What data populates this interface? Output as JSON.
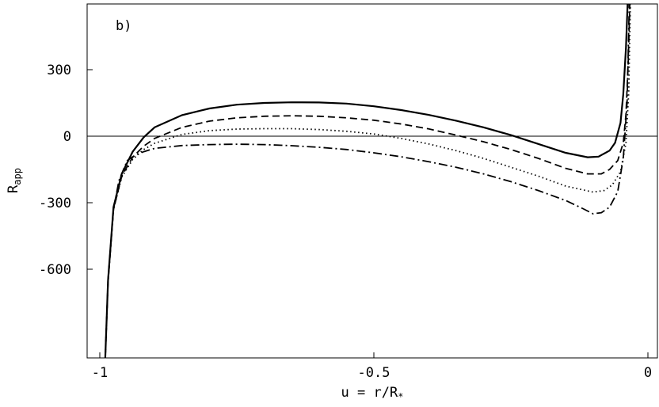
{
  "chart_data": {
    "type": "line",
    "panel_label": "b)",
    "xlabel": "u = r/R",
    "xlabel_sub": "*",
    "ylabel": "R",
    "ylabel_sub": "app",
    "xlim": [
      -1.0,
      0.0
    ],
    "ylim": [
      -1000,
      600
    ],
    "xticks": [
      -1,
      -0.5,
      0
    ],
    "xtick_labels": [
      "-1",
      "-0.5",
      "0"
    ],
    "yticks": [
      300,
      0,
      -300,
      -600
    ],
    "ytick_labels": [
      "300",
      "0",
      "-300",
      "-600"
    ],
    "reference_line_y": 0,
    "grid": false,
    "series": [
      {
        "style": "solid",
        "points": [
          [
            -0.99,
            -1000
          ],
          [
            -0.985,
            -650
          ],
          [
            -0.975,
            -320
          ],
          [
            -0.96,
            -170
          ],
          [
            -0.94,
            -70
          ],
          [
            -0.92,
            -5
          ],
          [
            -0.9,
            40
          ],
          [
            -0.85,
            95
          ],
          [
            -0.8,
            125
          ],
          [
            -0.75,
            142
          ],
          [
            -0.7,
            150
          ],
          [
            -0.65,
            153
          ],
          [
            -0.6,
            152
          ],
          [
            -0.55,
            147
          ],
          [
            -0.5,
            135
          ],
          [
            -0.45,
            118
          ],
          [
            -0.4,
            96
          ],
          [
            -0.35,
            70
          ],
          [
            -0.3,
            40
          ],
          [
            -0.25,
            5
          ],
          [
            -0.2,
            -35
          ],
          [
            -0.15,
            -75
          ],
          [
            -0.11,
            -95
          ],
          [
            -0.09,
            -92
          ],
          [
            -0.07,
            -65
          ],
          [
            -0.06,
            -30
          ],
          [
            -0.05,
            60
          ],
          [
            -0.045,
            190
          ],
          [
            -0.04,
            400
          ],
          [
            -0.037,
            600
          ]
        ]
      },
      {
        "style": "dashed",
        "points": [
          [
            -0.99,
            -1000
          ],
          [
            -0.985,
            -650
          ],
          [
            -0.975,
            -330
          ],
          [
            -0.96,
            -180
          ],
          [
            -0.94,
            -95
          ],
          [
            -0.92,
            -45
          ],
          [
            -0.9,
            -10
          ],
          [
            -0.85,
            40
          ],
          [
            -0.8,
            68
          ],
          [
            -0.75,
            83
          ],
          [
            -0.7,
            90
          ],
          [
            -0.65,
            92
          ],
          [
            -0.6,
            90
          ],
          [
            -0.55,
            83
          ],
          [
            -0.5,
            72
          ],
          [
            -0.45,
            55
          ],
          [
            -0.4,
            33
          ],
          [
            -0.35,
            5
          ],
          [
            -0.3,
            -25
          ],
          [
            -0.25,
            -60
          ],
          [
            -0.2,
            -100
          ],
          [
            -0.15,
            -145
          ],
          [
            -0.11,
            -170
          ],
          [
            -0.085,
            -170
          ],
          [
            -0.07,
            -150
          ],
          [
            -0.055,
            -110
          ],
          [
            -0.045,
            -30
          ],
          [
            -0.04,
            100
          ],
          [
            -0.036,
            330
          ],
          [
            -0.033,
            600
          ]
        ]
      },
      {
        "style": "dotted",
        "points": [
          [
            -0.99,
            -1000
          ],
          [
            -0.985,
            -650
          ],
          [
            -0.975,
            -330
          ],
          [
            -0.96,
            -185
          ],
          [
            -0.94,
            -105
          ],
          [
            -0.92,
            -60
          ],
          [
            -0.9,
            -32
          ],
          [
            -0.85,
            8
          ],
          [
            -0.8,
            25
          ],
          [
            -0.75,
            32
          ],
          [
            -0.7,
            34
          ],
          [
            -0.65,
            34
          ],
          [
            -0.6,
            30
          ],
          [
            -0.55,
            22
          ],
          [
            -0.5,
            10
          ],
          [
            -0.45,
            -10
          ],
          [
            -0.4,
            -35
          ],
          [
            -0.35,
            -65
          ],
          [
            -0.3,
            -100
          ],
          [
            -0.25,
            -140
          ],
          [
            -0.2,
            -180
          ],
          [
            -0.15,
            -225
          ],
          [
            -0.1,
            -252
          ],
          [
            -0.08,
            -245
          ],
          [
            -0.065,
            -220
          ],
          [
            -0.05,
            -160
          ],
          [
            -0.04,
            -30
          ],
          [
            -0.035,
            200
          ],
          [
            -0.032,
            600
          ]
        ]
      },
      {
        "style": "dash-dot",
        "points": [
          [
            -0.99,
            -1000
          ],
          [
            -0.985,
            -660
          ],
          [
            -0.975,
            -330
          ],
          [
            -0.965,
            -200
          ],
          [
            -0.95,
            -110
          ],
          [
            -0.935,
            -85
          ],
          [
            -0.92,
            -70
          ],
          [
            -0.9,
            -55
          ],
          [
            -0.85,
            -42
          ],
          [
            -0.8,
            -38
          ],
          [
            -0.75,
            -36
          ],
          [
            -0.7,
            -38
          ],
          [
            -0.65,
            -43
          ],
          [
            -0.6,
            -50
          ],
          [
            -0.55,
            -60
          ],
          [
            -0.5,
            -75
          ],
          [
            -0.45,
            -93
          ],
          [
            -0.4,
            -115
          ],
          [
            -0.35,
            -140
          ],
          [
            -0.3,
            -170
          ],
          [
            -0.25,
            -205
          ],
          [
            -0.2,
            -245
          ],
          [
            -0.15,
            -290
          ],
          [
            -0.12,
            -325
          ],
          [
            -0.1,
            -350
          ],
          [
            -0.085,
            -345
          ],
          [
            -0.07,
            -320
          ],
          [
            -0.055,
            -250
          ],
          [
            -0.045,
            -100
          ],
          [
            -0.038,
            150
          ],
          [
            -0.034,
            600
          ]
        ]
      }
    ]
  }
}
